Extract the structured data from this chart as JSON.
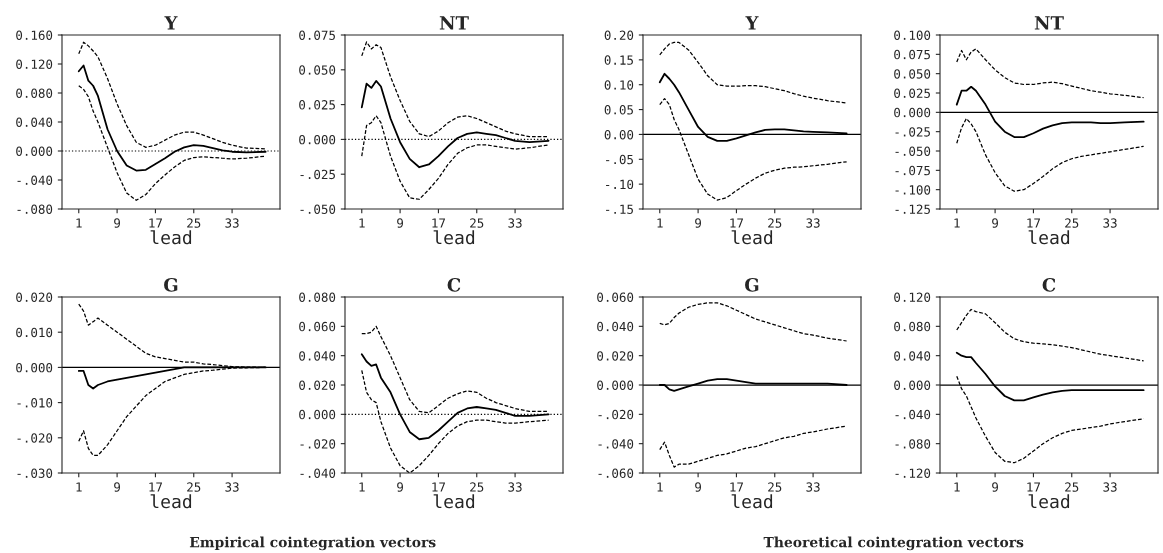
{
  "chart_data": [
    {
      "type": "line",
      "title": "Y",
      "xlabel": "lead",
      "xlim": [
        -2.5,
        43
      ],
      "xticks": [
        1,
        9,
        17,
        25,
        33
      ],
      "ylim": [
        -0.08,
        0.16
      ],
      "yticks": [
        {
          "value": -0.08,
          "label": "-.080"
        },
        {
          "value": -0.04,
          "label": "-.040"
        },
        {
          "value": 0,
          "label": "0.000"
        },
        {
          "value": 0.04,
          "label": "0.040"
        },
        {
          "value": 0.08,
          "label": "0.080"
        },
        {
          "value": 0.12,
          "label": "0.120"
        },
        {
          "value": 0.16,
          "label": "0.160"
        }
      ],
      "x": [
        1,
        2,
        3,
        4,
        5,
        7,
        9,
        11,
        13,
        15,
        17,
        19,
        21,
        23,
        25,
        27,
        29,
        31,
        33,
        36,
        40
      ],
      "ref_lines": [
        {
          "axis": "y",
          "value": 0,
          "line_style": "dotted"
        }
      ],
      "grid": false,
      "series": [
        {
          "color": "#000000",
          "line_style": "solid",
          "values": [
            0.11,
            0.118,
            0.097,
            0.09,
            0.076,
            0.03,
            0.0,
            -0.02,
            -0.027,
            -0.026,
            -0.018,
            -0.01,
            -0.001,
            0.005,
            0.008,
            0.007,
            0.004,
            0.001,
            -0.001,
            -0.002,
            -0.001
          ]
        },
        {
          "color": "#000000",
          "line_style": "dashed",
          "values": [
            0.134,
            0.15,
            0.145,
            0.138,
            0.13,
            0.1,
            0.065,
            0.035,
            0.012,
            0.005,
            0.008,
            0.015,
            0.022,
            0.026,
            0.026,
            0.022,
            0.017,
            0.012,
            0.008,
            0.004,
            0.003
          ]
        },
        {
          "color": "#000000",
          "line_style": "dashed",
          "values": [
            0.09,
            0.085,
            0.075,
            0.055,
            0.04,
            0.005,
            -0.03,
            -0.058,
            -0.068,
            -0.06,
            -0.045,
            -0.033,
            -0.022,
            -0.013,
            -0.009,
            -0.008,
            -0.009,
            -0.01,
            -0.011,
            -0.01,
            -0.007
          ]
        }
      ]
    },
    {
      "type": "line",
      "title": "NT",
      "xlabel": "lead",
      "xlim": [
        -2.5,
        43
      ],
      "xticks": [
        1,
        9,
        17,
        25,
        33
      ],
      "ylim": [
        -0.05,
        0.075
      ],
      "yticks": [
        {
          "value": -0.05,
          "label": "-.050"
        },
        {
          "value": -0.025,
          "label": "-.025"
        },
        {
          "value": 0,
          "label": "0.000"
        },
        {
          "value": 0.025,
          "label": "0.025"
        },
        {
          "value": 0.05,
          "label": "0.050"
        },
        {
          "value": 0.075,
          "label": "0.075"
        }
      ],
      "x": [
        1,
        2,
        3,
        4,
        5,
        7,
        9,
        11,
        13,
        15,
        17,
        19,
        21,
        23,
        25,
        27,
        29,
        31,
        33,
        36,
        40
      ],
      "ref_lines": [
        {
          "axis": "y",
          "value": 0,
          "line_style": "dotted"
        }
      ],
      "grid": false,
      "series": [
        {
          "color": "#000000",
          "line_style": "solid",
          "values": [
            0.023,
            0.04,
            0.037,
            0.042,
            0.038,
            0.015,
            -0.002,
            -0.014,
            -0.02,
            -0.018,
            -0.012,
            -0.005,
            0.001,
            0.004,
            0.005,
            0.004,
            0.003,
            0.001,
            -0.001,
            -0.002,
            -0.001
          ]
        },
        {
          "color": "#000000",
          "line_style": "dashed",
          "values": [
            0.06,
            0.07,
            0.065,
            0.068,
            0.066,
            0.045,
            0.028,
            0.013,
            0.004,
            0.002,
            0.006,
            0.012,
            0.016,
            0.017,
            0.015,
            0.012,
            0.009,
            0.006,
            0.004,
            0.002,
            0.002
          ]
        },
        {
          "color": "#000000",
          "line_style": "dashed",
          "values": [
            -0.012,
            0.01,
            0.012,
            0.017,
            0.012,
            -0.012,
            -0.03,
            -0.042,
            -0.043,
            -0.036,
            -0.028,
            -0.018,
            -0.01,
            -0.006,
            -0.004,
            -0.004,
            -0.005,
            -0.006,
            -0.007,
            -0.006,
            -0.004
          ]
        }
      ]
    },
    {
      "type": "line",
      "title": "Y",
      "xlabel": "lead",
      "xlim": [
        -2.5,
        43
      ],
      "xticks": [
        1,
        9,
        17,
        25,
        33
      ],
      "ylim": [
        -0.15,
        0.2
      ],
      "yticks": [
        {
          "value": -0.15,
          "label": "-.15"
        },
        {
          "value": -0.1,
          "label": "-.10"
        },
        {
          "value": -0.05,
          "label": "-.05"
        },
        {
          "value": 0,
          "label": "0.00"
        },
        {
          "value": 0.05,
          "label": "0.05"
        },
        {
          "value": 0.1,
          "label": "0.10"
        },
        {
          "value": 0.15,
          "label": "0.15"
        },
        {
          "value": 0.2,
          "label": "0.20"
        }
      ],
      "x": [
        1,
        2,
        3,
        4,
        5,
        7,
        9,
        11,
        13,
        15,
        17,
        19,
        21,
        23,
        25,
        27,
        29,
        31,
        33,
        36,
        40
      ],
      "ref_lines": [
        {
          "axis": "y",
          "value": 0,
          "line_style": "solid"
        }
      ],
      "grid": false,
      "series": [
        {
          "color": "#000000",
          "line_style": "solid",
          "values": [
            0.105,
            0.122,
            0.112,
            0.1,
            0.085,
            0.05,
            0.015,
            -0.005,
            -0.013,
            -0.013,
            -0.008,
            -0.002,
            0.004,
            0.009,
            0.01,
            0.01,
            0.008,
            0.006,
            0.005,
            0.004,
            0.002
          ]
        },
        {
          "color": "#000000",
          "line_style": "dashed",
          "values": [
            0.16,
            0.172,
            0.182,
            0.185,
            0.185,
            0.17,
            0.145,
            0.118,
            0.1,
            0.097,
            0.097,
            0.098,
            0.098,
            0.096,
            0.092,
            0.088,
            0.082,
            0.077,
            0.073,
            0.068,
            0.063
          ]
        },
        {
          "color": "#000000",
          "line_style": "dashed",
          "values": [
            0.06,
            0.072,
            0.06,
            0.03,
            0.01,
            -0.04,
            -0.09,
            -0.12,
            -0.132,
            -0.127,
            -0.113,
            -0.1,
            -0.088,
            -0.078,
            -0.072,
            -0.068,
            -0.066,
            -0.065,
            -0.063,
            -0.06,
            -0.055
          ]
        }
      ]
    },
    {
      "type": "line",
      "title": "NT",
      "xlabel": "lead",
      "xlim": [
        -2.5,
        43
      ],
      "xticks": [
        1,
        9,
        17,
        25,
        33
      ],
      "ylim": [
        -0.125,
        0.1
      ],
      "yticks": [
        {
          "value": -0.125,
          "label": "-.125"
        },
        {
          "value": -0.1,
          "label": "-.100"
        },
        {
          "value": -0.075,
          "label": "-.075"
        },
        {
          "value": -0.05,
          "label": "-.050"
        },
        {
          "value": -0.025,
          "label": "-.025"
        },
        {
          "value": 0,
          "label": "0.000"
        },
        {
          "value": 0.025,
          "label": "0.025"
        },
        {
          "value": 0.05,
          "label": "0.050"
        },
        {
          "value": 0.075,
          "label": "0.075"
        },
        {
          "value": 0.1,
          "label": "0.100"
        }
      ],
      "x": [
        1,
        2,
        3,
        4,
        5,
        7,
        9,
        11,
        13,
        15,
        17,
        19,
        21,
        23,
        25,
        27,
        29,
        31,
        33,
        36,
        40
      ],
      "ref_lines": [
        {
          "axis": "y",
          "value": 0,
          "line_style": "solid"
        }
      ],
      "grid": false,
      "series": [
        {
          "color": "#000000",
          "line_style": "solid",
          "values": [
            0.01,
            0.028,
            0.028,
            0.033,
            0.028,
            0.01,
            -0.012,
            -0.025,
            -0.032,
            -0.032,
            -0.027,
            -0.021,
            -0.017,
            -0.014,
            -0.013,
            -0.013,
            -0.013,
            -0.014,
            -0.014,
            -0.013,
            -0.012
          ]
        },
        {
          "color": "#000000",
          "line_style": "dashed",
          "values": [
            0.065,
            0.08,
            0.068,
            0.078,
            0.082,
            0.068,
            0.055,
            0.045,
            0.038,
            0.036,
            0.036,
            0.038,
            0.039,
            0.037,
            0.034,
            0.031,
            0.028,
            0.026,
            0.024,
            0.022,
            0.019
          ]
        },
        {
          "color": "#000000",
          "line_style": "dashed",
          "values": [
            -0.04,
            -0.02,
            -0.008,
            -0.015,
            -0.025,
            -0.055,
            -0.078,
            -0.095,
            -0.102,
            -0.1,
            -0.092,
            -0.083,
            -0.073,
            -0.065,
            -0.06,
            -0.057,
            -0.055,
            -0.053,
            -0.051,
            -0.048,
            -0.044
          ]
        }
      ]
    },
    {
      "type": "line",
      "title": "G",
      "xlabel": "lead",
      "xlim": [
        -2.5,
        43
      ],
      "xticks": [
        1,
        9,
        17,
        25,
        33
      ],
      "ylim": [
        -0.03,
        0.02
      ],
      "yticks": [
        {
          "value": -0.03,
          "label": "-.030"
        },
        {
          "value": -0.02,
          "label": "-.020"
        },
        {
          "value": -0.01,
          "label": "-.010"
        },
        {
          "value": 0,
          "label": "0.000"
        },
        {
          "value": 0.01,
          "label": "0.010"
        },
        {
          "value": 0.02,
          "label": "0.020"
        }
      ],
      "x": [
        1,
        2,
        3,
        4,
        5,
        7,
        9,
        11,
        13,
        15,
        17,
        19,
        21,
        23,
        25,
        27,
        29,
        31,
        33,
        36,
        40
      ],
      "ref_lines": [
        {
          "axis": "y",
          "value": 0,
          "line_style": "solid"
        }
      ],
      "grid": false,
      "annotations": [
        "Empirical cointegration vectors"
      ],
      "series": [
        {
          "color": "#000000",
          "line_style": "solid",
          "values": [
            -0.001,
            -0.001,
            -0.005,
            -0.006,
            -0.005,
            -0.004,
            -0.0035,
            -0.003,
            -0.0025,
            -0.002,
            -0.0015,
            -0.001,
            -0.0005,
            0.0,
            0.0,
            0.0,
            0.0,
            0.0,
            0.0,
            0.0,
            0.0
          ]
        },
        {
          "color": "#000000",
          "line_style": "dashed",
          "values": [
            0.018,
            0.016,
            0.012,
            0.013,
            0.014,
            0.012,
            0.01,
            0.008,
            0.006,
            0.004,
            0.003,
            0.0025,
            0.002,
            0.0015,
            0.0015,
            0.001,
            0.0008,
            0.0005,
            0.0002,
            0.0001,
            0.0
          ]
        },
        {
          "color": "#000000",
          "line_style": "dashed",
          "values": [
            -0.021,
            -0.018,
            -0.023,
            -0.025,
            -0.025,
            -0.022,
            -0.018,
            -0.014,
            -0.011,
            -0.008,
            -0.006,
            -0.004,
            -0.003,
            -0.002,
            -0.0015,
            -0.001,
            -0.0008,
            -0.0005,
            -0.0002,
            -0.0001,
            0.0
          ]
        }
      ]
    },
    {
      "type": "line",
      "title": "C",
      "xlabel": "lead",
      "xlim": [
        -2.5,
        43
      ],
      "xticks": [
        1,
        9,
        17,
        25,
        33
      ],
      "ylim": [
        -0.04,
        0.08
      ],
      "yticks": [
        {
          "value": -0.04,
          "label": "-.040"
        },
        {
          "value": -0.02,
          "label": "-.020"
        },
        {
          "value": 0,
          "label": "0.000"
        },
        {
          "value": 0.02,
          "label": "0.020"
        },
        {
          "value": 0.04,
          "label": "0.040"
        },
        {
          "value": 0.06,
          "label": "0.060"
        },
        {
          "value": 0.08,
          "label": "0.080"
        }
      ],
      "x": [
        1,
        2,
        3,
        4,
        5,
        7,
        9,
        11,
        13,
        15,
        17,
        19,
        21,
        23,
        25,
        27,
        29,
        31,
        33,
        36,
        40
      ],
      "ref_lines": [
        {
          "axis": "y",
          "value": 0,
          "line_style": "dotted"
        }
      ],
      "grid": false,
      "series": [
        {
          "color": "#000000",
          "line_style": "solid",
          "values": [
            0.041,
            0.036,
            0.033,
            0.034,
            0.025,
            0.015,
            0.0,
            -0.012,
            -0.017,
            -0.016,
            -0.011,
            -0.005,
            0.001,
            0.004,
            0.005,
            0.004,
            0.003,
            0.001,
            -0.001,
            -0.001,
            0.0
          ]
        },
        {
          "color": "#000000",
          "line_style": "dashed",
          "values": [
            0.055,
            0.055,
            0.056,
            0.06,
            0.053,
            0.04,
            0.025,
            0.01,
            0.002,
            0.001,
            0.006,
            0.011,
            0.014,
            0.016,
            0.015,
            0.011,
            0.008,
            0.006,
            0.004,
            0.002,
            0.002
          ]
        },
        {
          "color": "#000000",
          "line_style": "dashed",
          "values": [
            0.03,
            0.015,
            0.01,
            0.008,
            -0.005,
            -0.023,
            -0.035,
            -0.04,
            -0.035,
            -0.028,
            -0.02,
            -0.013,
            -0.008,
            -0.005,
            -0.004,
            -0.004,
            -0.005,
            -0.006,
            -0.006,
            -0.005,
            -0.004
          ]
        }
      ]
    },
    {
      "type": "line",
      "title": "G",
      "xlabel": "lead",
      "xlim": [
        -2.5,
        43
      ],
      "xticks": [
        1,
        9,
        17,
        25,
        33
      ],
      "ylim": [
        -0.06,
        0.06
      ],
      "yticks": [
        {
          "value": -0.06,
          "label": "-.060"
        },
        {
          "value": -0.04,
          "label": "-.040"
        },
        {
          "value": -0.02,
          "label": "-.020"
        },
        {
          "value": 0,
          "label": "0.000"
        },
        {
          "value": 0.02,
          "label": "0.020"
        },
        {
          "value": 0.04,
          "label": "0.040"
        },
        {
          "value": 0.06,
          "label": "0.060"
        }
      ],
      "x": [
        1,
        2,
        3,
        4,
        5,
        7,
        9,
        11,
        13,
        15,
        17,
        19,
        21,
        23,
        25,
        27,
        29,
        31,
        33,
        36,
        40
      ],
      "ref_lines": [
        {
          "axis": "y",
          "value": 0,
          "line_style": "solid"
        }
      ],
      "grid": false,
      "annotations": [
        "Theoretical cointegration vectors"
      ],
      "series": [
        {
          "color": "#000000",
          "line_style": "solid",
          "values": [
            0.0,
            0.0,
            -0.003,
            -0.004,
            -0.003,
            -0.001,
            0.001,
            0.003,
            0.004,
            0.004,
            0.003,
            0.002,
            0.001,
            0.001,
            0.001,
            0.001,
            0.001,
            0.001,
            0.001,
            0.001,
            0.0
          ]
        },
        {
          "color": "#000000",
          "line_style": "dashed",
          "values": [
            0.042,
            0.041,
            0.042,
            0.046,
            0.049,
            0.053,
            0.055,
            0.056,
            0.056,
            0.054,
            0.051,
            0.048,
            0.045,
            0.043,
            0.041,
            0.039,
            0.037,
            0.035,
            0.034,
            0.032,
            0.03
          ]
        },
        {
          "color": "#000000",
          "line_style": "dashed",
          "values": [
            -0.044,
            -0.039,
            -0.048,
            -0.056,
            -0.054,
            -0.054,
            -0.052,
            -0.05,
            -0.048,
            -0.047,
            -0.045,
            -0.043,
            -0.042,
            -0.04,
            -0.038,
            -0.036,
            -0.035,
            -0.033,
            -0.032,
            -0.03,
            -0.028
          ]
        }
      ]
    },
    {
      "type": "line",
      "title": "C",
      "xlabel": "lead",
      "xlim": [
        -2.5,
        43
      ],
      "xticks": [
        1,
        9,
        17,
        25,
        33
      ],
      "ylim": [
        -0.12,
        0.12
      ],
      "yticks": [
        {
          "value": -0.12,
          "label": "-.120"
        },
        {
          "value": -0.08,
          "label": "-.080"
        },
        {
          "value": -0.04,
          "label": "-.040"
        },
        {
          "value": 0,
          "label": "0.000"
        },
        {
          "value": 0.04,
          "label": "0.040"
        },
        {
          "value": 0.08,
          "label": "0.080"
        },
        {
          "value": 0.12,
          "label": "0.120"
        }
      ],
      "x": [
        1,
        2,
        3,
        4,
        5,
        7,
        9,
        11,
        13,
        15,
        17,
        19,
        21,
        23,
        25,
        27,
        29,
        31,
        33,
        36,
        40
      ],
      "ref_lines": [
        {
          "axis": "y",
          "value": 0,
          "line_style": "solid"
        }
      ],
      "grid": false,
      "series": [
        {
          "color": "#000000",
          "line_style": "solid",
          "values": [
            0.044,
            0.04,
            0.038,
            0.038,
            0.03,
            0.015,
            -0.002,
            -0.015,
            -0.021,
            -0.021,
            -0.017,
            -0.013,
            -0.01,
            -0.008,
            -0.007,
            -0.007,
            -0.007,
            -0.007,
            -0.007,
            -0.007,
            -0.007
          ]
        },
        {
          "color": "#000000",
          "line_style": "dashed",
          "values": [
            0.075,
            0.085,
            0.095,
            0.103,
            0.1,
            0.097,
            0.085,
            0.072,
            0.063,
            0.059,
            0.057,
            0.056,
            0.055,
            0.053,
            0.051,
            0.048,
            0.045,
            0.042,
            0.04,
            0.037,
            0.033
          ]
        },
        {
          "color": "#000000",
          "line_style": "dashed",
          "values": [
            0.012,
            -0.005,
            -0.015,
            -0.03,
            -0.045,
            -0.07,
            -0.092,
            -0.104,
            -0.106,
            -0.1,
            -0.09,
            -0.08,
            -0.072,
            -0.066,
            -0.062,
            -0.06,
            -0.058,
            -0.056,
            -0.053,
            -0.05,
            -0.046
          ]
        }
      ]
    }
  ]
}
